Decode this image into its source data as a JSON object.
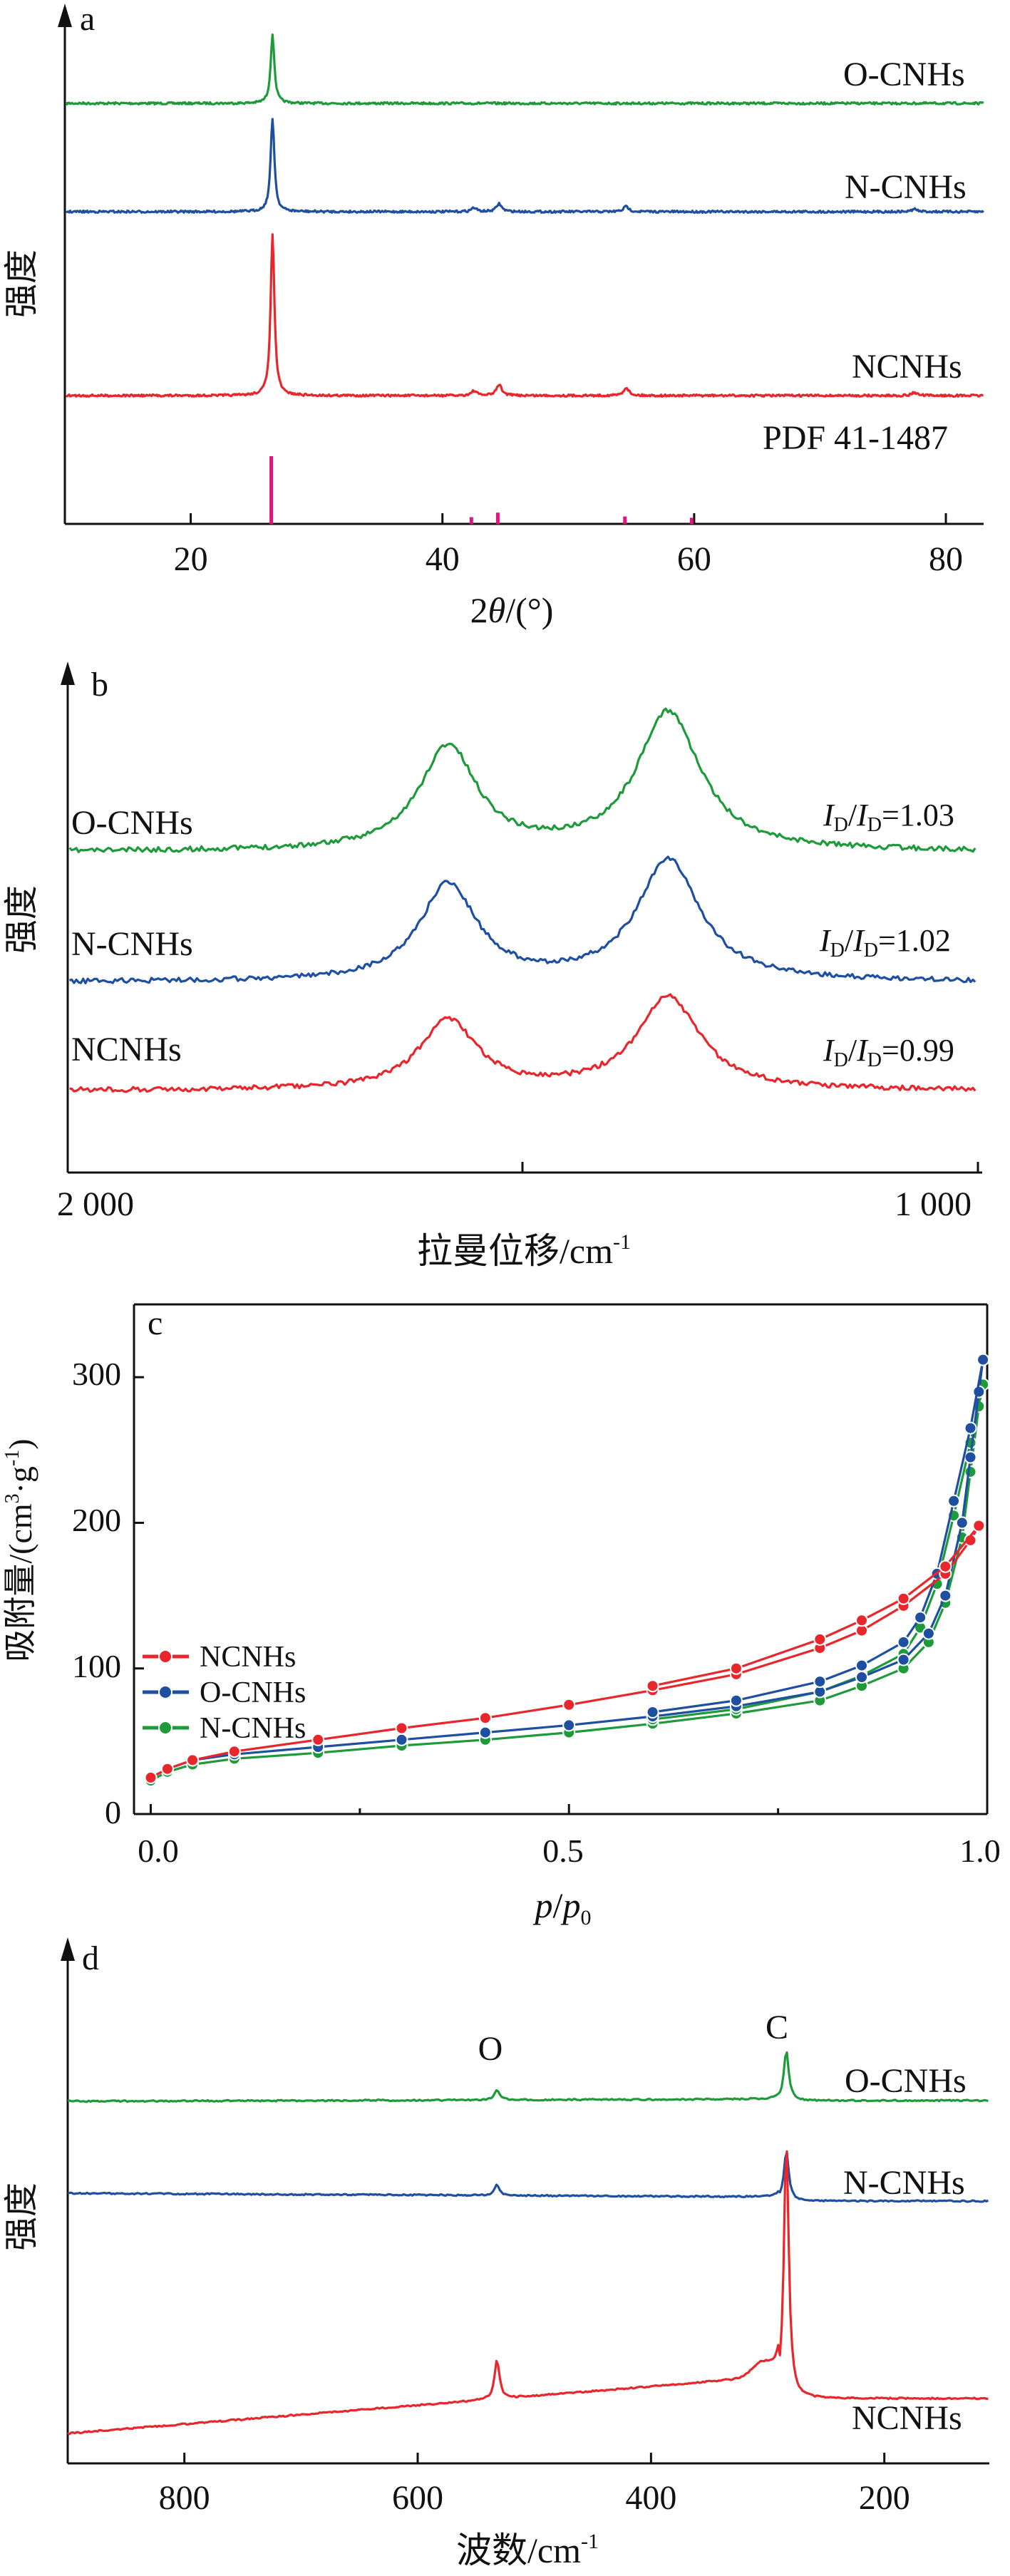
{
  "colors": {
    "red": "#e8262b",
    "blue": "#1f4fa0",
    "green": "#1d9a3a",
    "magenta": "#e0157f",
    "axis": "#111111"
  },
  "chart_data": [
    {
      "panel": "a",
      "type": "line",
      "ylabel": "强度",
      "xlabel_parts": [
        "2",
        "θ",
        "/(°)"
      ],
      "xlim": [
        10,
        83
      ],
      "xticks": [
        20,
        40,
        60,
        80
      ],
      "series": [
        {
          "name": "O-CNHs",
          "color": "green",
          "peaks": [
            [
              26.5,
              0.62
            ]
          ],
          "minor": []
        },
        {
          "name": "N-CNHs",
          "color": "blue",
          "peaks": [
            [
              26.5,
              0.7
            ]
          ],
          "minor": [
            [
              42.5,
              0.03
            ],
            [
              44.5,
              0.06
            ],
            [
              54.6,
              0.04
            ],
            [
              77.5,
              0.02
            ]
          ]
        },
        {
          "name": "NCNHs",
          "color": "red",
          "peaks": [
            [
              26.5,
              1.0
            ]
          ],
          "minor": [
            [
              42.5,
              0.03
            ],
            [
              44.5,
              0.07
            ],
            [
              54.6,
              0.05
            ],
            [
              77.5,
              0.02
            ]
          ]
        }
      ],
      "reference": {
        "name": "PDF 41-1487",
        "color": "magenta",
        "positions": [
          26.4,
          42.3,
          44.4,
          54.5,
          59.8
        ],
        "heights": [
          1.0,
          0.05,
          0.12,
          0.06,
          0.04
        ]
      }
    },
    {
      "panel": "b",
      "type": "line",
      "ylabel": "强度",
      "xlabel": "拉曼位移/cm-1",
      "xlim": [
        2000,
        1000
      ],
      "xticks": [
        2000,
        1500,
        1000
      ],
      "xtick_labels": [
        "2 000",
        "",
        "1 000"
      ],
      "series": [
        {
          "name": "O-CNHs",
          "color": "green",
          "ratio": "1.03",
          "G": 0.75,
          "D": 1.0
        },
        {
          "name": "N-CNHs",
          "color": "blue",
          "ratio": "1.02",
          "G": 0.8,
          "D": 1.0
        },
        {
          "name": "NCNHs",
          "color": "red",
          "ratio": "0.99",
          "G": 0.75,
          "D": 1.0
        }
      ],
      "G_band": 1582,
      "D_band": 1340
    },
    {
      "panel": "c",
      "type": "line",
      "ylabel": "吸附量/(cm³·g⁻¹)",
      "xlabel": "p/p0",
      "xlim": [
        -0.02,
        1.0
      ],
      "ylim": [
        0,
        350
      ],
      "xticks": [
        0.0,
        0.5,
        1.0
      ],
      "yticks": [
        0,
        100,
        200,
        300
      ],
      "legend": "middle-left",
      "series": [
        {
          "name": "NCNHs",
          "color": "red",
          "adsorption": [
            [
              0.0,
              25
            ],
            [
              0.02,
              31
            ],
            [
              0.05,
              37
            ],
            [
              0.1,
              43
            ],
            [
              0.2,
              51
            ],
            [
              0.3,
              59
            ],
            [
              0.4,
              66
            ],
            [
              0.5,
              75
            ],
            [
              0.6,
              85
            ],
            [
              0.7,
              96
            ],
            [
              0.8,
              114
            ],
            [
              0.85,
              126
            ],
            [
              0.9,
              143
            ],
            [
              0.95,
              165
            ],
            [
              0.98,
              188
            ],
            [
              0.99,
              198
            ]
          ],
          "desorption": [
            [
              0.99,
              198
            ],
            [
              0.95,
              170
            ],
            [
              0.9,
              148
            ],
            [
              0.85,
              133
            ],
            [
              0.8,
              120
            ],
            [
              0.7,
              100
            ],
            [
              0.6,
              88
            ]
          ]
        },
        {
          "name": "O-CNHs",
          "color": "blue",
          "adsorption": [
            [
              0.0,
              25
            ],
            [
              0.02,
              31
            ],
            [
              0.05,
              37
            ],
            [
              0.1,
              41
            ],
            [
              0.2,
              46
            ],
            [
              0.3,
              51
            ],
            [
              0.4,
              56
            ],
            [
              0.5,
              61
            ],
            [
              0.6,
              67
            ],
            [
              0.7,
              74
            ],
            [
              0.8,
              84
            ],
            [
              0.85,
              94
            ],
            [
              0.9,
              106
            ],
            [
              0.93,
              124
            ],
            [
              0.95,
              150
            ],
            [
              0.97,
              200
            ],
            [
              0.98,
              245
            ],
            [
              0.99,
              290
            ],
            [
              0.995,
              312
            ]
          ],
          "desorption": [
            [
              0.995,
              312
            ],
            [
              0.98,
              265
            ],
            [
              0.96,
              215
            ],
            [
              0.94,
              165
            ],
            [
              0.92,
              135
            ],
            [
              0.9,
              118
            ],
            [
              0.85,
              102
            ],
            [
              0.8,
              91
            ],
            [
              0.7,
              78
            ],
            [
              0.6,
              70
            ]
          ]
        },
        {
          "name": "N-CNHs",
          "color": "green",
          "adsorption": [
            [
              0.0,
              23
            ],
            [
              0.02,
              29
            ],
            [
              0.05,
              34
            ],
            [
              0.1,
              38
            ],
            [
              0.2,
              42
            ],
            [
              0.3,
              47
            ],
            [
              0.4,
              51
            ],
            [
              0.5,
              56
            ],
            [
              0.6,
              62
            ],
            [
              0.7,
              69
            ],
            [
              0.8,
              78
            ],
            [
              0.85,
              88
            ],
            [
              0.9,
              100
            ],
            [
              0.93,
              118
            ],
            [
              0.95,
              145
            ],
            [
              0.97,
              190
            ],
            [
              0.98,
              235
            ],
            [
              0.99,
              280
            ],
            [
              0.995,
              295
            ]
          ],
          "desorption": [
            [
              0.995,
              295
            ],
            [
              0.98,
              255
            ],
            [
              0.96,
              205
            ],
            [
              0.94,
              158
            ],
            [
              0.92,
              128
            ],
            [
              0.9,
              110
            ],
            [
              0.85,
              95
            ],
            [
              0.8,
              84
            ],
            [
              0.7,
              72
            ],
            [
              0.6,
              65
            ]
          ]
        }
      ]
    },
    {
      "panel": "d",
      "type": "line",
      "ylabel": "强度",
      "xlabel": "波数/cm-1",
      "xlim": [
        900,
        110
      ],
      "xticks": [
        800,
        600,
        400,
        200
      ],
      "peak_labels": [
        {
          "text": "O",
          "x": 532
        },
        {
          "text": "C",
          "x": 284
        }
      ],
      "series": [
        {
          "name": "O-CNHs",
          "color": "green",
          "O": 0.15,
          "C": 0.7,
          "drop": 0.02
        },
        {
          "name": "N-CNHs",
          "color": "blue",
          "O": 0.15,
          "C": 0.7,
          "drop": 0.06
        },
        {
          "name": "NCNHs",
          "color": "red",
          "O": 0.55,
          "C": 3.6,
          "drop": 0.3
        }
      ]
    }
  ],
  "labels": {
    "a": {
      "panel": "a",
      "series": [
        "O-CNHs",
        "N-CNHs",
        "NCNHs"
      ],
      "ref": "PDF 41-1487",
      "xlabel_pre": "2",
      "xlabel_theta": "θ",
      "xlabel_post": "/(°)",
      "ylabel": "强度"
    },
    "b": {
      "panel": "b",
      "ylabel": "强度",
      "xlabel_main": "拉曼位移/cm",
      "xlabel_sup": "-1",
      "names": [
        "O-CNHs",
        "N-CNHs",
        "NCNHs"
      ],
      "I": "I",
      "D": "D",
      "sep": "/",
      "eq": "=",
      "ratios": [
        "1.03",
        "1.02",
        "0.99"
      ],
      "x_left": "2 000",
      "x_right": "1 000"
    },
    "c": {
      "panel": "c",
      "ylabel_main": "吸附量/(cm",
      "ylabel_sup1": "3",
      "ylabel_mid": "·g",
      "ylabel_sup2": "-1",
      "ylabel_end": ")",
      "xlabel_p": "p",
      "xlabel_sep": "/",
      "xlabel_p0": "p",
      "xlabel_sub": "0",
      "legend": [
        "NCNHs",
        "O-CNHs",
        "N-CNHs"
      ],
      "yticks": [
        "0",
        "100",
        "200",
        "300"
      ],
      "xticks": [
        "0.0",
        "0.5",
        "1.0"
      ]
    },
    "d": {
      "panel": "d",
      "ylabel": "强度",
      "xlabel_main": "波数/cm",
      "xlabel_sup": "-1",
      "names": [
        "O-CNHs",
        "N-CNHs",
        "NCNHs"
      ],
      "peakO": "O",
      "peakC": "C",
      "xticks": [
        "800",
        "600",
        "400",
        "200"
      ]
    }
  }
}
